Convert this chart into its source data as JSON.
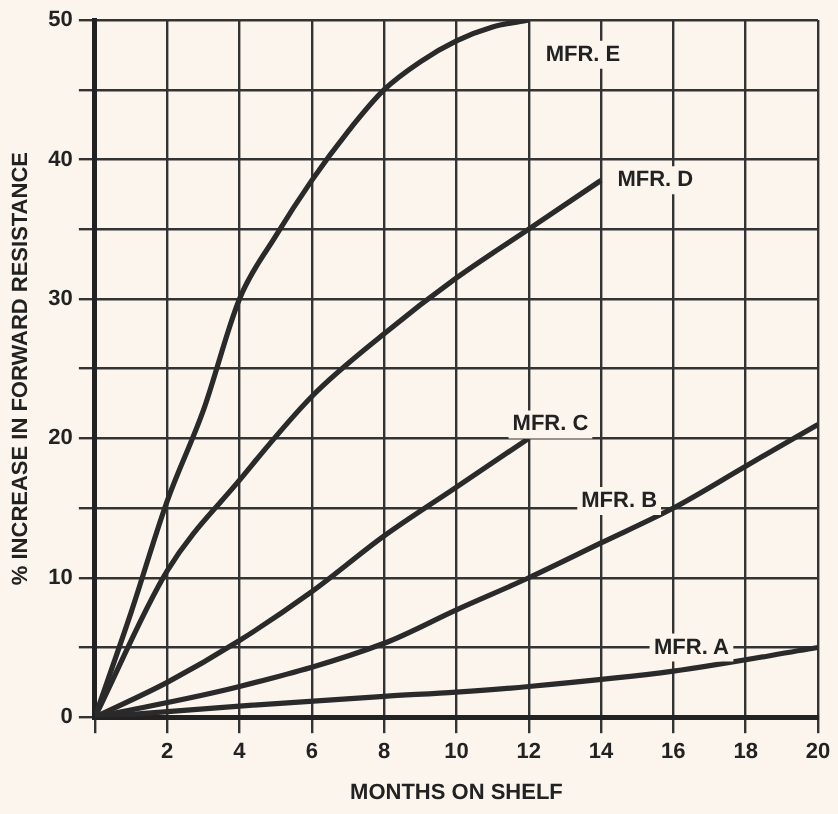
{
  "chart_data": {
    "type": "line",
    "xlabel": "MONTHS ON SHELF",
    "ylabel": "% INCREASE IN FORWARD RESISTANCE",
    "xlim": [
      0,
      20
    ],
    "ylim": [
      0,
      50
    ],
    "xticks": [
      {
        "value": 0,
        "label": null
      },
      2,
      4,
      6,
      8,
      10,
      12,
      14,
      16,
      18,
      20
    ],
    "yticks": [
      0,
      {
        "value": 5,
        "label": null
      },
      10,
      {
        "value": 15,
        "label": null
      },
      20,
      {
        "value": 25,
        "label": null
      },
      30,
      {
        "value": 35,
        "label": null
      },
      40,
      {
        "value": 45,
        "label": null
      },
      50
    ],
    "grid": true,
    "legend": false,
    "marker": "none",
    "line_style": "solid",
    "series": [
      {
        "color": "#2a2a2a",
        "x": [
          0,
          1,
          2,
          3,
          4,
          5,
          6,
          7,
          8,
          9,
          10,
          11,
          12
        ],
        "values": [
          0,
          7.5,
          15.5,
          22,
          30,
          34.5,
          38.5,
          42,
          45,
          47,
          48.5,
          49.5,
          50
        ]
      },
      {
        "color": "#2a2a2a",
        "x": [
          0,
          2,
          4,
          6,
          8,
          10,
          12,
          14
        ],
        "values": [
          0,
          10.5,
          17,
          23,
          27.5,
          31.5,
          35,
          38.5
        ]
      },
      {
        "color": "#2a2a2a",
        "x": [
          0,
          2,
          4,
          6,
          8,
          10,
          12
        ],
        "values": [
          0,
          2.5,
          5.5,
          9,
          13,
          16.5,
          20
        ]
      },
      {
        "color": "#2a2a2a",
        "x": [
          0,
          4,
          8,
          10,
          12,
          14,
          16,
          18,
          20
        ],
        "values": [
          0,
          2.2,
          5.3,
          7.7,
          10,
          12.5,
          15,
          18,
          21
        ]
      },
      {
        "color": "#2a2a2a",
        "x": [
          0,
          4,
          8,
          10,
          12,
          16,
          20
        ],
        "values": [
          0,
          0.8,
          1.5,
          1.8,
          2.2,
          3.3,
          5
        ]
      }
    ],
    "annotations": [
      {
        "text": "MFR. E",
        "x": 13.5,
        "y": 47.5
      },
      {
        "text": "MFR. D",
        "x": 15.5,
        "y": 38.5
      },
      {
        "text": "MFR. C",
        "x": 12.6,
        "y": 21
      },
      {
        "text": "MFR. B",
        "x": 14.5,
        "y": 15.5
      },
      {
        "text": "MFR. A",
        "x": 16.5,
        "y": 5
      }
    ]
  }
}
